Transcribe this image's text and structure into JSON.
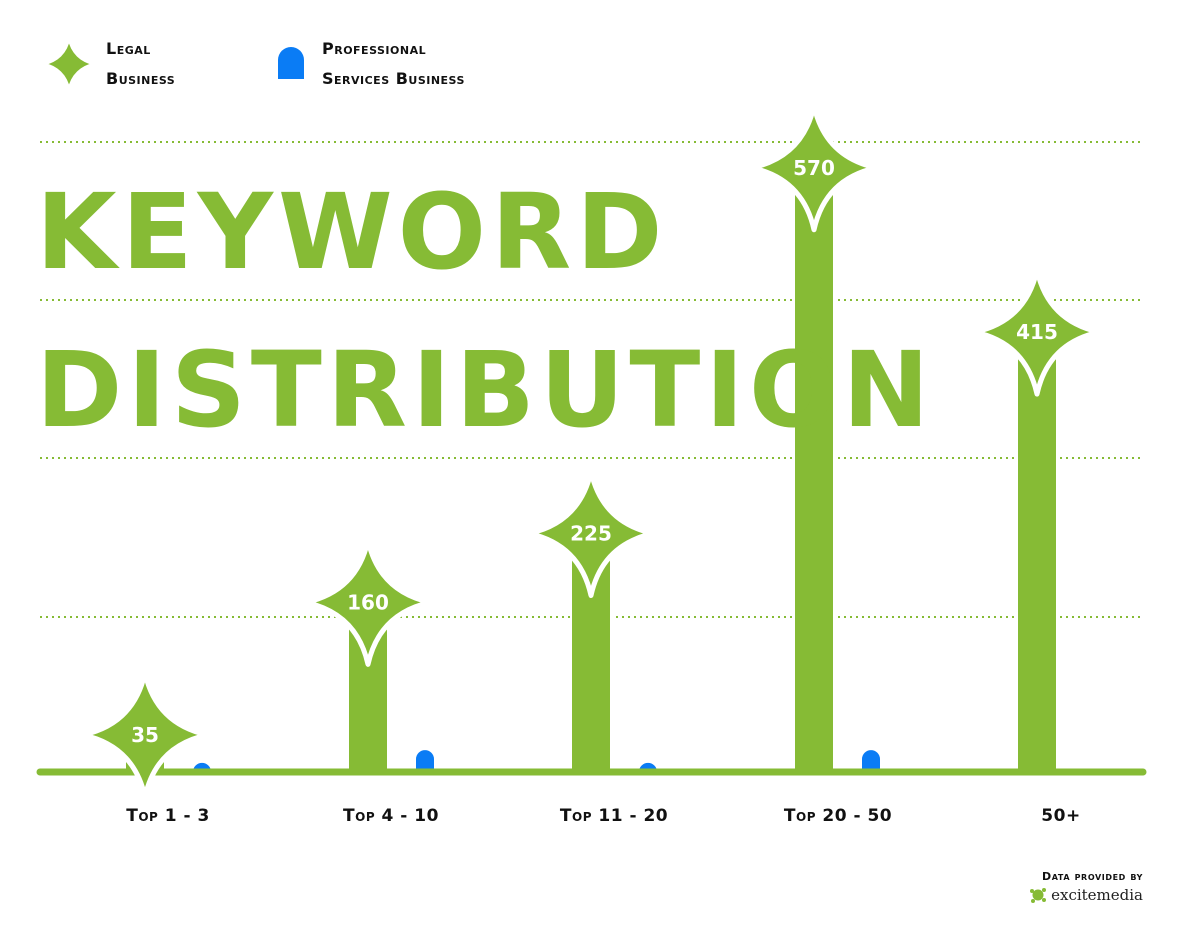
{
  "legend": {
    "legal_line1": "Legal",
    "legal_line2": "Business",
    "pro_line1": "Professional",
    "pro_line2": "Services Business"
  },
  "title": {
    "line1": "KEYWORD",
    "line2": "DISTRIBUTION"
  },
  "credit": {
    "label": "Data provided by",
    "brand": "excitemedia"
  },
  "colors": {
    "legal": "#86bb35",
    "professional": "#0a7cf5",
    "label_text": "#ffffff"
  },
  "chart_data": {
    "type": "bar",
    "categories": [
      "Top 1 - 3",
      "Top 4 - 10",
      "Top 11 - 20",
      "Top 20 - 50",
      "50+"
    ],
    "series": [
      {
        "name": "Legal Business",
        "values": [
          35,
          160,
          225,
          570,
          415
        ],
        "data_labels": [
          "35",
          "160",
          "225",
          "570",
          "415"
        ]
      },
      {
        "name": "Professional Services Business",
        "values": [
          4,
          9,
          4,
          9,
          null
        ]
      }
    ],
    "ylim": [
      0,
      600
    ],
    "grid": true,
    "legend_position": "top-left",
    "title": "KEYWORD DISTRIBUTION",
    "xlabel": "",
    "ylabel": ""
  }
}
